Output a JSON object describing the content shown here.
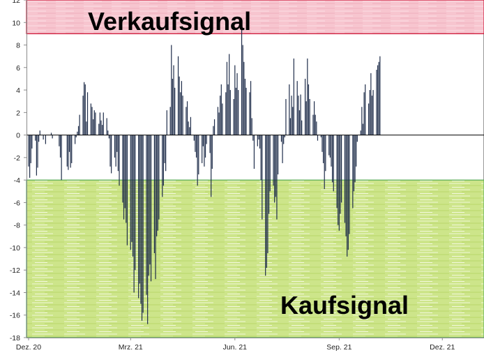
{
  "chart_data": {
    "type": "bar",
    "ylim": [
      -18,
      12
    ],
    "yticks": [
      12,
      10,
      8,
      6,
      4,
      2,
      0,
      -2,
      -4,
      -6,
      -8,
      -10,
      -12,
      -14,
      -16,
      -18
    ],
    "x_range": [
      "2020-12-01",
      "2021-12-31"
    ],
    "xticks": [
      {
        "label": "Dez. 20",
        "date": "2020-12-01"
      },
      {
        "label": "Mrz. 21",
        "date": "2021-03-01"
      },
      {
        "label": "Jun. 21",
        "date": "2021-06-01"
      },
      {
        "label": "Sep. 21",
        "date": "2021-09-01"
      },
      {
        "label": "Dez. 21",
        "date": "2021-12-01"
      }
    ],
    "zones": [
      {
        "label": "Verkaufsignal",
        "from": 9,
        "to": 12,
        "color": "#f7c5cf",
        "border": "#cc1133"
      },
      {
        "label": "Kaufsignal",
        "from": -18,
        "to": -4,
        "color": "#cde58a",
        "border": "#55aa55"
      }
    ],
    "bar_color": "#1f2d4a",
    "series": [
      {
        "values": [
          [
            "2020-12-01",
            -2.8
          ],
          [
            "2020-12-02",
            -3.8
          ],
          [
            "2020-12-03",
            -2.5
          ],
          [
            "2020-12-04",
            -1.2
          ],
          [
            "2020-12-07",
            -0.5
          ],
          [
            "2020-12-08",
            -3.6
          ],
          [
            "2020-12-09",
            -2.9
          ],
          [
            "2020-12-10",
            -0.6
          ],
          [
            "2020-12-11",
            0.4
          ],
          [
            "2020-12-14",
            -0.4
          ],
          [
            "2020-12-16",
            -0.8
          ],
          [
            "2020-12-21",
            0.2
          ],
          [
            "2020-12-22",
            -0.3
          ],
          [
            "2020-12-28",
            -1.0
          ],
          [
            "2020-12-29",
            -2.0
          ],
          [
            "2020-12-30",
            -4.0
          ],
          [
            "2021-01-04",
            -2.8
          ],
          [
            "2021-01-05",
            -3.1
          ],
          [
            "2021-01-06",
            -1.5
          ],
          [
            "2021-01-07",
            -2.9
          ],
          [
            "2021-01-08",
            -2.5
          ],
          [
            "2021-01-11",
            -0.8
          ],
          [
            "2021-01-12",
            -0.2
          ],
          [
            "2021-01-13",
            0.3
          ],
          [
            "2021-01-14",
            0.8
          ],
          [
            "2021-01-15",
            1.8
          ],
          [
            "2021-01-18",
            3.5
          ],
          [
            "2021-01-19",
            4.7
          ],
          [
            "2021-01-20",
            4.5
          ],
          [
            "2021-01-21",
            1.2
          ],
          [
            "2021-01-22",
            3.8
          ],
          [
            "2021-01-25",
            2.8
          ],
          [
            "2021-01-26",
            2.5
          ],
          [
            "2021-01-27",
            1.4
          ],
          [
            "2021-01-28",
            2.2
          ],
          [
            "2021-01-29",
            2.0
          ],
          [
            "2021-02-01",
            1.0
          ],
          [
            "2021-02-02",
            2.0
          ],
          [
            "2021-02-03",
            1.3
          ],
          [
            "2021-02-04",
            0.9
          ],
          [
            "2021-02-05",
            2.0
          ],
          [
            "2021-02-08",
            1.5
          ],
          [
            "2021-02-09",
            0.4
          ],
          [
            "2021-02-10",
            -0.3
          ],
          [
            "2021-02-11",
            -2.8
          ],
          [
            "2021-02-12",
            -3.4
          ],
          [
            "2021-02-15",
            -2.0
          ],
          [
            "2021-02-16",
            -2.8
          ],
          [
            "2021-02-17",
            -1.5
          ],
          [
            "2021-02-18",
            -3.2
          ],
          [
            "2021-02-19",
            -4.5
          ],
          [
            "2021-02-22",
            -6.0
          ],
          [
            "2021-02-23",
            -7.5
          ],
          [
            "2021-02-24",
            -6.5
          ],
          [
            "2021-02-25",
            -7.8
          ],
          [
            "2021-02-26",
            -9.8
          ],
          [
            "2021-03-01",
            -10.2
          ],
          [
            "2021-03-02",
            -9.5
          ],
          [
            "2021-03-03",
            -10.8
          ],
          [
            "2021-03-04",
            -14.0
          ],
          [
            "2021-03-05",
            -12.0
          ],
          [
            "2021-03-08",
            -14.5
          ],
          [
            "2021-03-09",
            -13.2
          ],
          [
            "2021-03-10",
            -15.0
          ],
          [
            "2021-03-11",
            -16.5
          ],
          [
            "2021-03-12",
            -15.8
          ],
          [
            "2021-03-15",
            -14.2
          ],
          [
            "2021-03-16",
            -16.8
          ],
          [
            "2021-03-17",
            -12.5
          ],
          [
            "2021-03-18",
            -11.5
          ],
          [
            "2021-03-19",
            -13.0
          ],
          [
            "2021-03-22",
            -10.5
          ],
          [
            "2021-03-23",
            -12.8
          ],
          [
            "2021-03-24",
            -9.0
          ],
          [
            "2021-03-25",
            -8.5
          ],
          [
            "2021-03-26",
            -7.5
          ],
          [
            "2021-03-29",
            -5.5
          ],
          [
            "2021-03-30",
            -4.5
          ],
          [
            "2021-03-31",
            -2.5
          ],
          [
            "2021-04-01",
            -3.2
          ],
          [
            "2021-04-02",
            2.2
          ],
          [
            "2021-04-05",
            2.5
          ],
          [
            "2021-04-06",
            8.0
          ],
          [
            "2021-04-07",
            5.0
          ],
          [
            "2021-04-08",
            6.2
          ],
          [
            "2021-04-09",
            4.2
          ],
          [
            "2021-04-12",
            7.0
          ],
          [
            "2021-04-13",
            5.2
          ],
          [
            "2021-04-14",
            3.8
          ],
          [
            "2021-04-15",
            4.8
          ],
          [
            "2021-04-16",
            3.5
          ],
          [
            "2021-04-19",
            2.5
          ],
          [
            "2021-04-20",
            3.0
          ],
          [
            "2021-04-21",
            1.2
          ],
          [
            "2021-04-22",
            0.7
          ],
          [
            "2021-04-23",
            1.6
          ],
          [
            "2021-04-26",
            -0.5
          ],
          [
            "2021-04-27",
            -1.5
          ],
          [
            "2021-04-28",
            -2.0
          ],
          [
            "2021-04-29",
            -4.5
          ],
          [
            "2021-04-30",
            -3.5
          ],
          [
            "2021-05-03",
            -2.5
          ],
          [
            "2021-05-04",
            -1.0
          ],
          [
            "2021-05-05",
            -2.8
          ],
          [
            "2021-05-06",
            -2.0
          ],
          [
            "2021-05-07",
            -0.8
          ],
          [
            "2021-05-10",
            -1.6
          ],
          [
            "2021-05-11",
            -5.5
          ],
          [
            "2021-05-12",
            -3.0
          ],
          [
            "2021-05-13",
            0.8
          ],
          [
            "2021-05-14",
            1.4
          ],
          [
            "2021-05-17",
            2.5
          ],
          [
            "2021-05-18",
            2.0
          ],
          [
            "2021-05-19",
            3.5
          ],
          [
            "2021-05-20",
            4.5
          ],
          [
            "2021-05-21",
            2.8
          ],
          [
            "2021-05-24",
            3.8
          ],
          [
            "2021-05-25",
            6.5
          ],
          [
            "2021-05-26",
            4.5
          ],
          [
            "2021-05-27",
            7.2
          ],
          [
            "2021-05-28",
            4.0
          ],
          [
            "2021-05-31",
            3.2
          ],
          [
            "2021-06-01",
            6.2
          ],
          [
            "2021-06-02",
            4.2
          ],
          [
            "2021-06-03",
            5.5
          ],
          [
            "2021-06-04",
            4.0
          ],
          [
            "2021-06-07",
            9.8
          ],
          [
            "2021-06-08",
            8.0
          ],
          [
            "2021-06-09",
            6.5
          ],
          [
            "2021-06-10",
            5.0
          ],
          [
            "2021-06-11",
            4.2
          ],
          [
            "2021-06-14",
            3.8
          ],
          [
            "2021-06-15",
            4.8
          ],
          [
            "2021-06-16",
            1.5
          ],
          [
            "2021-06-17",
            -0.5
          ],
          [
            "2021-06-18",
            -3.0
          ],
          [
            "2021-06-21",
            -1.0
          ],
          [
            "2021-06-22",
            -0.4
          ],
          [
            "2021-06-23",
            -1.2
          ],
          [
            "2021-06-24",
            -4.0
          ],
          [
            "2021-06-25",
            -7.5
          ],
          [
            "2021-06-28",
            -12.5
          ],
          [
            "2021-06-29",
            -11.8
          ],
          [
            "2021-06-30",
            -10.5
          ],
          [
            "2021-07-01",
            -7.0
          ],
          [
            "2021-07-02",
            -5.0
          ],
          [
            "2021-07-05",
            -4.5
          ],
          [
            "2021-07-06",
            -6.0
          ],
          [
            "2021-07-07",
            -5.5
          ],
          [
            "2021-07-08",
            -7.5
          ],
          [
            "2021-07-09",
            -3.5
          ],
          [
            "2021-07-12",
            -0.6
          ],
          [
            "2021-07-13",
            -2.5
          ],
          [
            "2021-07-14",
            -0.8
          ],
          [
            "2021-07-15",
            -0.2
          ],
          [
            "2021-07-16",
            3.2
          ],
          [
            "2021-07-19",
            4.5
          ],
          [
            "2021-07-20",
            1.5
          ],
          [
            "2021-07-21",
            3.5
          ],
          [
            "2021-07-22",
            2.5
          ],
          [
            "2021-07-23",
            6.8
          ],
          [
            "2021-07-26",
            4.8
          ],
          [
            "2021-07-27",
            3.5
          ],
          [
            "2021-07-28",
            2.2
          ],
          [
            "2021-07-29",
            3.6
          ],
          [
            "2021-07-30",
            1.3
          ],
          [
            "2021-08-02",
            5.0
          ],
          [
            "2021-08-03",
            3.0
          ],
          [
            "2021-08-04",
            6.8
          ],
          [
            "2021-08-05",
            4.5
          ],
          [
            "2021-08-06",
            3.2
          ],
          [
            "2021-08-09",
            1.8
          ],
          [
            "2021-08-10",
            3.0
          ],
          [
            "2021-08-11",
            1.8
          ],
          [
            "2021-08-12",
            1.2
          ],
          [
            "2021-08-13",
            -0.5
          ],
          [
            "2021-08-16",
            -0.2
          ],
          [
            "2021-08-17",
            -1.5
          ],
          [
            "2021-08-18",
            -2.5
          ],
          [
            "2021-08-19",
            -4.8
          ],
          [
            "2021-08-20",
            -3.2
          ],
          [
            "2021-08-23",
            -1.8
          ],
          [
            "2021-08-24",
            -2.0
          ],
          [
            "2021-08-25",
            -2.8
          ],
          [
            "2021-08-26",
            -4.2
          ],
          [
            "2021-08-27",
            -5.0
          ],
          [
            "2021-08-30",
            -6.5
          ],
          [
            "2021-08-31",
            -8.0
          ],
          [
            "2021-09-01",
            -8.5
          ],
          [
            "2021-09-02",
            -7.0
          ],
          [
            "2021-09-03",
            -6.0
          ],
          [
            "2021-09-06",
            -7.8
          ],
          [
            "2021-09-07",
            -9.0
          ],
          [
            "2021-09-08",
            -10.8
          ],
          [
            "2021-09-09",
            -10.2
          ],
          [
            "2021-09-10",
            -8.8
          ],
          [
            "2021-09-13",
            -6.5
          ],
          [
            "2021-09-14",
            -5.0
          ],
          [
            "2021-09-15",
            -4.2
          ],
          [
            "2021-09-16",
            -2.8
          ],
          [
            "2021-09-17",
            -0.6
          ],
          [
            "2021-09-20",
            0.4
          ],
          [
            "2021-09-21",
            2.5
          ],
          [
            "2021-09-22",
            1.0
          ],
          [
            "2021-09-23",
            3.8
          ],
          [
            "2021-09-24",
            4.5
          ],
          [
            "2021-09-27",
            2.8
          ],
          [
            "2021-09-28",
            4.0
          ],
          [
            "2021-09-29",
            5.5
          ],
          [
            "2021-09-30",
            3.5
          ],
          [
            "2021-10-01",
            4.0
          ],
          [
            "2021-10-04",
            5.8
          ],
          [
            "2021-10-05",
            6.2
          ],
          [
            "2021-10-06",
            6.5
          ],
          [
            "2021-10-07",
            7.0
          ]
        ]
      }
    ]
  }
}
